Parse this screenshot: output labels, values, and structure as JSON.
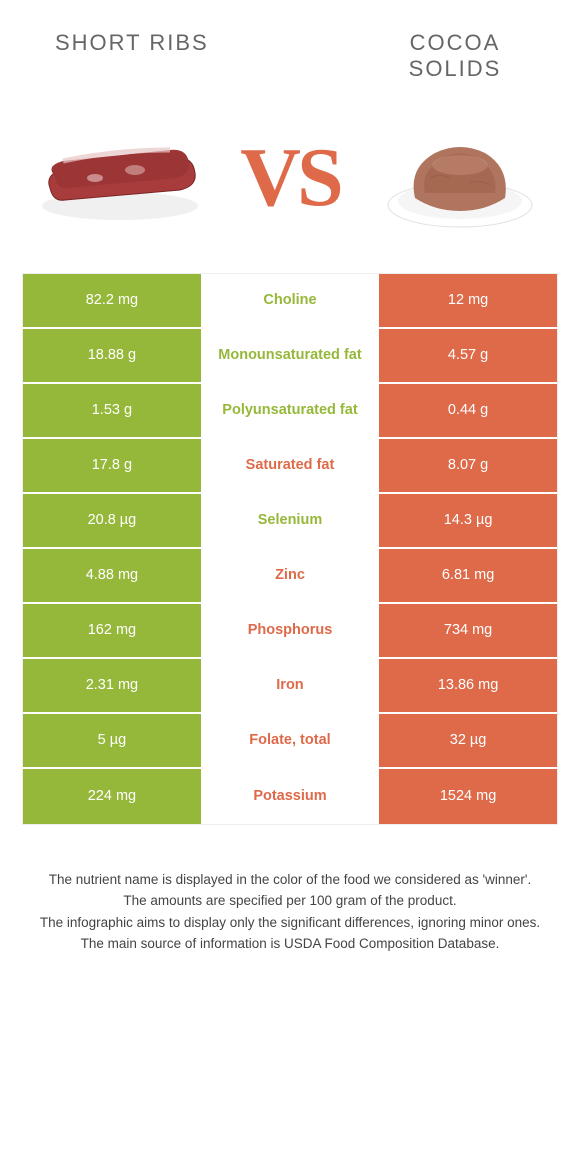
{
  "left_title": "SHORT RIBS",
  "right_title": "COCOA SOLIDS",
  "vs_label": "VS",
  "colors": {
    "green": "#96b83a",
    "orange": "#de6a4a",
    "green_text": "#96b83a",
    "orange_text": "#de6a4a",
    "row_border": "#ffffff",
    "cell_text": "#ffffff",
    "bg": "#ffffff"
  },
  "rows": [
    {
      "label": "Choline",
      "left": "82.2 mg",
      "right": "12 mg",
      "winner": "left"
    },
    {
      "label": "Monounsaturated fat",
      "left": "18.88 g",
      "right": "4.57 g",
      "winner": "left"
    },
    {
      "label": "Polyunsaturated fat",
      "left": "1.53 g",
      "right": "0.44 g",
      "winner": "left"
    },
    {
      "label": "Saturated fat",
      "left": "17.8 g",
      "right": "8.07 g",
      "winner": "right"
    },
    {
      "label": "Selenium",
      "left": "20.8 µg",
      "right": "14.3 µg",
      "winner": "left"
    },
    {
      "label": "Zinc",
      "left": "4.88 mg",
      "right": "6.81 mg",
      "winner": "right"
    },
    {
      "label": "Phosphorus",
      "left": "162 mg",
      "right": "734 mg",
      "winner": "right"
    },
    {
      "label": "Iron",
      "left": "2.31 mg",
      "right": "13.86 mg",
      "winner": "right"
    },
    {
      "label": "Folate, total",
      "left": "5 µg",
      "right": "32 µg",
      "winner": "right"
    },
    {
      "label": "Potassium",
      "left": "224 mg",
      "right": "1524 mg",
      "winner": "right"
    }
  ],
  "footer": [
    "The nutrient name is displayed in the color of the food we considered as 'winner'.",
    "The amounts are specified per 100 gram of the product.",
    "The infographic aims to display only the significant differences, ignoring minor ones.",
    "The main source of information is USDA Food Composition Database."
  ]
}
